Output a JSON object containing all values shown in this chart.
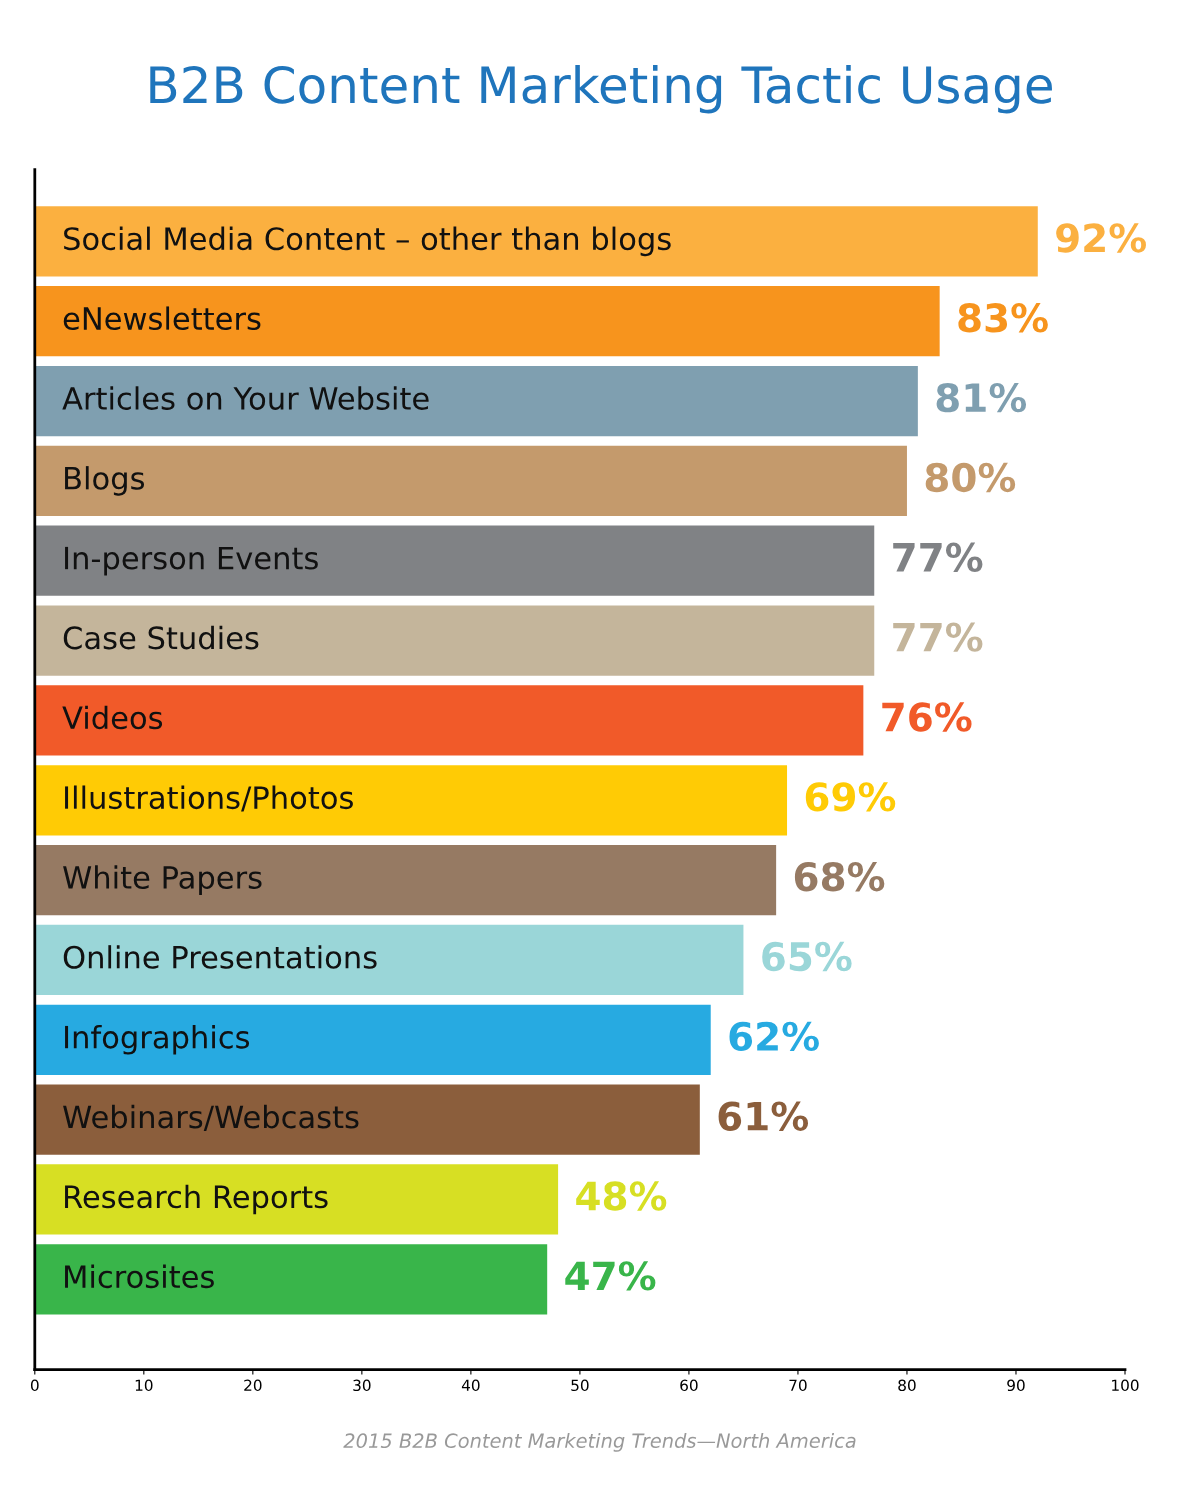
{
  "chart_data": {
    "type": "bar",
    "orientation": "horizontal",
    "title": "B2B Content Marketing Tactic Usage",
    "categories": [
      "Social Media Content – other than blogs",
      "eNewsletters",
      "Articles on Your Website",
      "Blogs",
      "In-person Events",
      "Case Studies",
      "Videos",
      "Illustrations/Photos",
      "White Papers",
      "Online Presentations",
      "Infographics",
      "Webinars/Webcasts",
      "Research Reports",
      "Microsites"
    ],
    "values": [
      92,
      83,
      81,
      80,
      77,
      77,
      76,
      69,
      68,
      65,
      62,
      61,
      48,
      47
    ],
    "colors": [
      "#fbb040",
      "#f7941d",
      "#7f9fb0",
      "#c49a6c",
      "#808285",
      "#c4b59b",
      "#f15a29",
      "#ffcb05",
      "#967a63",
      "#9ad6d8",
      "#27aae1",
      "#8b5e3c",
      "#d7df23",
      "#39b54a"
    ],
    "value_labels": [
      "92%",
      "83%",
      "81%",
      "80%",
      "77%",
      "77%",
      "76%",
      "69%",
      "68%",
      "65%",
      "62%",
      "61%",
      "48%",
      "47%"
    ],
    "xlim": [
      0,
      100
    ],
    "xticks": [
      0,
      10,
      20,
      30,
      40,
      50,
      60,
      70,
      80,
      90,
      100
    ],
    "grid": false,
    "legend": false,
    "annotations": [
      "2015 B2B Content Marketing Trends—North America"
    ]
  }
}
